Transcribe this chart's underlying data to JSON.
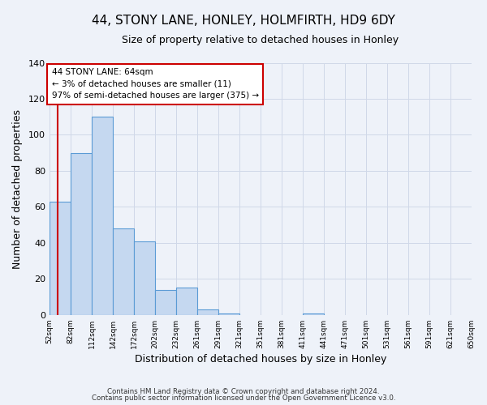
{
  "title": "44, STONY LANE, HONLEY, HOLMFIRTH, HD9 6DY",
  "subtitle": "Size of property relative to detached houses in Honley",
  "xlabel": "Distribution of detached houses by size in Honley",
  "ylabel": "Number of detached properties",
  "bar_color": "#c5d8f0",
  "bar_edge_color": "#5b9bd5",
  "bin_edges": [
    52,
    82,
    112,
    142,
    172,
    202,
    232,
    261,
    291,
    321,
    351,
    381,
    411,
    441,
    471,
    501,
    531,
    561,
    591,
    621,
    650
  ],
  "bin_labels": [
    "52sqm",
    "82sqm",
    "112sqm",
    "142sqm",
    "172sqm",
    "202sqm",
    "232sqm",
    "261sqm",
    "291sqm",
    "321sqm",
    "351sqm",
    "381sqm",
    "411sqm",
    "441sqm",
    "471sqm",
    "501sqm",
    "531sqm",
    "561sqm",
    "591sqm",
    "621sqm",
    "650sqm"
  ],
  "counts": [
    63,
    90,
    110,
    48,
    41,
    14,
    15,
    3,
    1,
    0,
    0,
    0,
    1,
    0,
    0,
    0,
    0,
    0,
    0,
    0
  ],
  "ylim": [
    0,
    140
  ],
  "yticks": [
    0,
    20,
    40,
    60,
    80,
    100,
    120,
    140
  ],
  "property_line_x": 64,
  "property_line_color": "#cc0000",
  "annotation_title": "44 STONY LANE: 64sqm",
  "annotation_line1": "← 3% of detached houses are smaller (11)",
  "annotation_line2": "97% of semi-detached houses are larger (375) →",
  "footer_line1": "Contains HM Land Registry data © Crown copyright and database right 2024.",
  "footer_line2": "Contains public sector information licensed under the Open Government Licence v3.0.",
  "background_color": "#eef2f9",
  "plot_bg_color": "#eef2f9",
  "grid_color": "#d0d8e8"
}
